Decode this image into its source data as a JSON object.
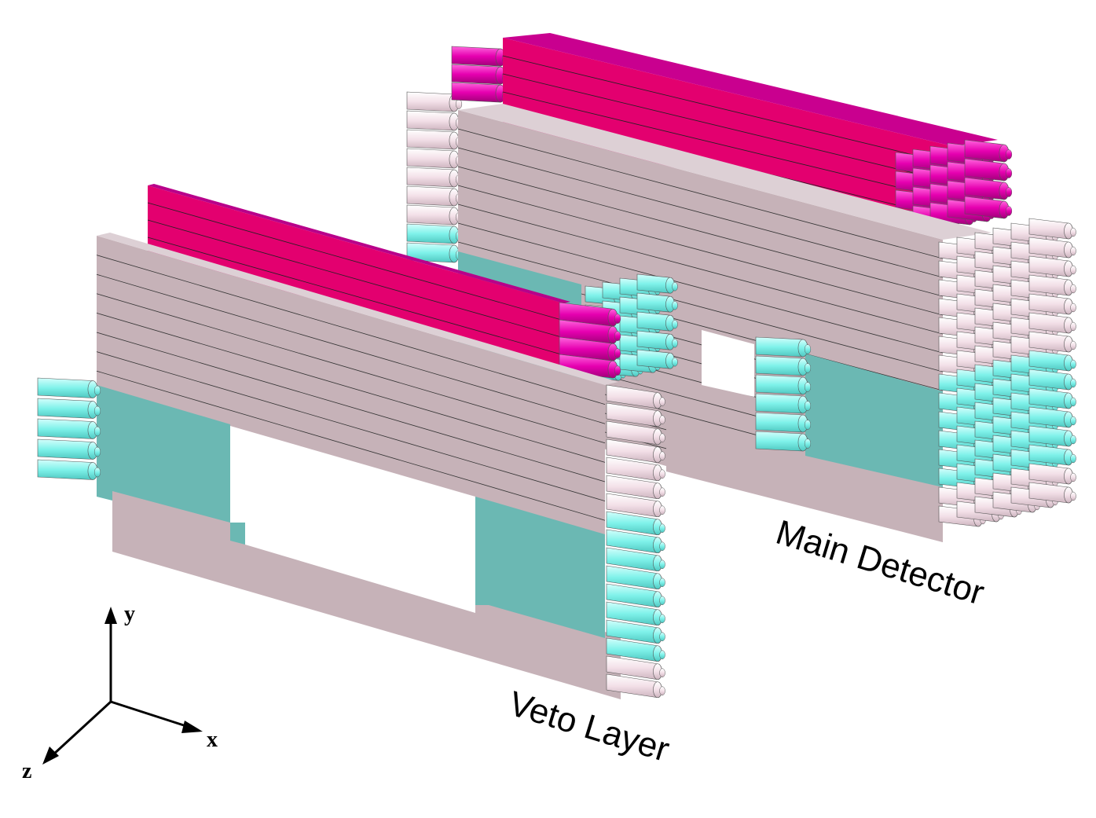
{
  "labels": {
    "main_detector": "Main Detector",
    "veto_layer": "Veto Layer"
  },
  "axes": {
    "x": "x",
    "y": "y",
    "z": "z"
  },
  "colors": {
    "grey_bar": "#c6b2b8",
    "grey_bar_top": "#d8cbd0",
    "magenta_bar": "#e3006f",
    "magenta_pmt": "#e600b0",
    "teal_bar": "#6bb8b3",
    "cyan_pmt": "#7ff5ee",
    "pink_pmt": "#f5e2ea"
  }
}
